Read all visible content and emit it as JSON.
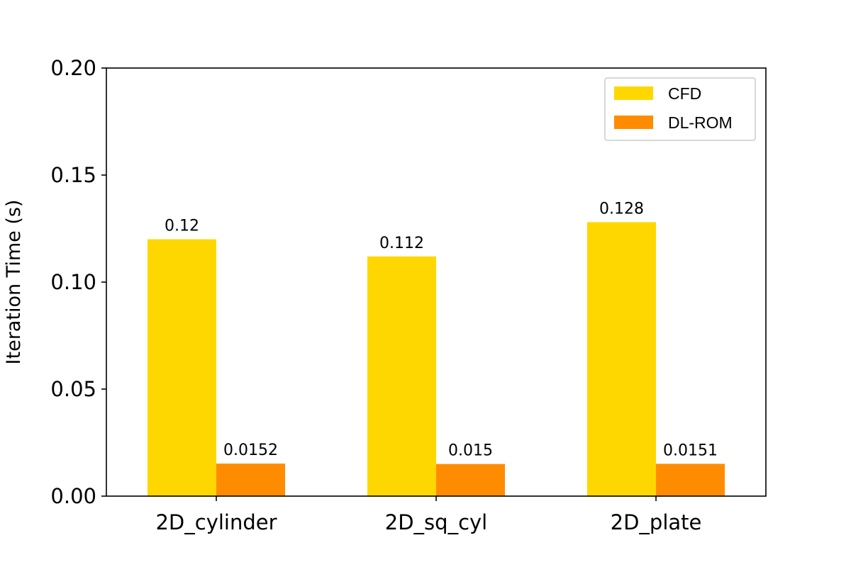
{
  "chart_data": {
    "type": "bar",
    "title": "",
    "xlabel": "",
    "ylabel": "Iteration Time (s)",
    "categories": [
      "2D_cylinder",
      "2D_sq_cyl",
      "2D_plate"
    ],
    "series": [
      {
        "name": "CFD",
        "color": "#FFD700",
        "values": [
          0.12,
          0.112,
          0.128
        ],
        "labels": [
          "0.12",
          "0.112",
          "0.128"
        ]
      },
      {
        "name": "DL-ROM",
        "color": "#FF8C00",
        "values": [
          0.0152,
          0.015,
          0.0151
        ],
        "labels": [
          "0.0152",
          "0.015",
          "0.0151"
        ]
      }
    ],
    "ylim": [
      0,
      0.2
    ],
    "yticks": [
      0,
      0.05,
      0.1,
      0.15,
      0.2
    ],
    "ytick_labels": [
      "0.00",
      "0.05",
      "0.10",
      "0.15",
      "0.20"
    ],
    "grid": false,
    "legend_position": "top-right"
  }
}
